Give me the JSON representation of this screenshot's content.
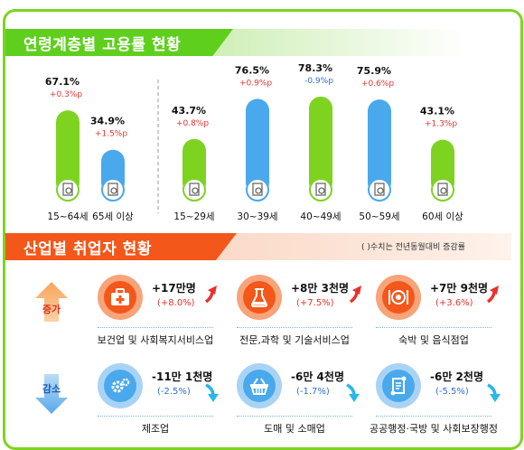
{
  "sections": {
    "age_title": "연령계층별 고용률 현황",
    "industry_title": "산업별 취업자 현황",
    "note": "( )수치는 전년동월대비 증감률"
  },
  "colors": {
    "green": "#7ed321",
    "blue": "#4aa8ec",
    "increase": "#e8322d",
    "decrease": "#2d6fd1",
    "orange": "#f4571a"
  },
  "chart_data": {
    "type": "bar",
    "categories": [
      "15~64세",
      "65세 이상",
      "15~29세",
      "30~39세",
      "40~49세",
      "50~59세",
      "60세 이상"
    ],
    "values": [
      67.1,
      34.9,
      43.7,
      76.5,
      78.3,
      75.9,
      43.1
    ],
    "value_labels": [
      "67.1%",
      "34.9%",
      "43.7%",
      "76.5%",
      "78.3%",
      "75.9%",
      "43.1%"
    ],
    "change_labels": [
      "+0.3%p",
      "+1.5%p",
      "+0.8%p",
      "+0.9%p",
      "-0.9%p",
      "+0.6%p",
      "+1.3%p"
    ],
    "change_direction": [
      "up",
      "up",
      "up",
      "up",
      "down",
      "up",
      "up"
    ],
    "bar_colors": [
      "green",
      "blue",
      "green",
      "blue",
      "green",
      "blue",
      "green"
    ],
    "icons": [
      "person-document-icon",
      "person-search-icon",
      "person-document-icon",
      "person-document-icon",
      "person-document-icon",
      "person-document-icon",
      "person-document-icon"
    ],
    "groups": [
      [
        "15~64세",
        "65세 이상"
      ],
      [
        "15~29세",
        "30~39세",
        "40~49세",
        "50~59세",
        "60세 이상"
      ]
    ],
    "ylim": [
      0,
      100
    ],
    "grid": false,
    "legend": "none"
  },
  "industry": {
    "increase_label": "증가",
    "decrease_label": "감소",
    "increase": [
      {
        "name": "보건업 및 사회복지서비스업",
        "value": "+17만명",
        "change": "(+8.0%)",
        "icon": "first-aid-kit-icon"
      },
      {
        "name": "전문,과학 및 기술서비스업",
        "value": "+8만 3천명",
        "change": "(+7.5%)",
        "icon": "flask-icon"
      },
      {
        "name": "숙박 및 음식점업",
        "value": "+7만 9천명",
        "change": "(+3.6%)",
        "icon": "plate-cutlery-icon"
      }
    ],
    "decrease": [
      {
        "name": "제조업",
        "value": "-11만 1천명",
        "change": "(-2.5%)",
        "icon": "gears-icon"
      },
      {
        "name": "도매 및 소매업",
        "value": "-6만 4천명",
        "change": "(-1.7%)",
        "icon": "basket-icon"
      },
      {
        "name": "공공행정·국방 및 사회보장행정",
        "value": "-6만 2천명",
        "change": "(-5.5%)",
        "icon": "scroll-icon"
      }
    ]
  }
}
